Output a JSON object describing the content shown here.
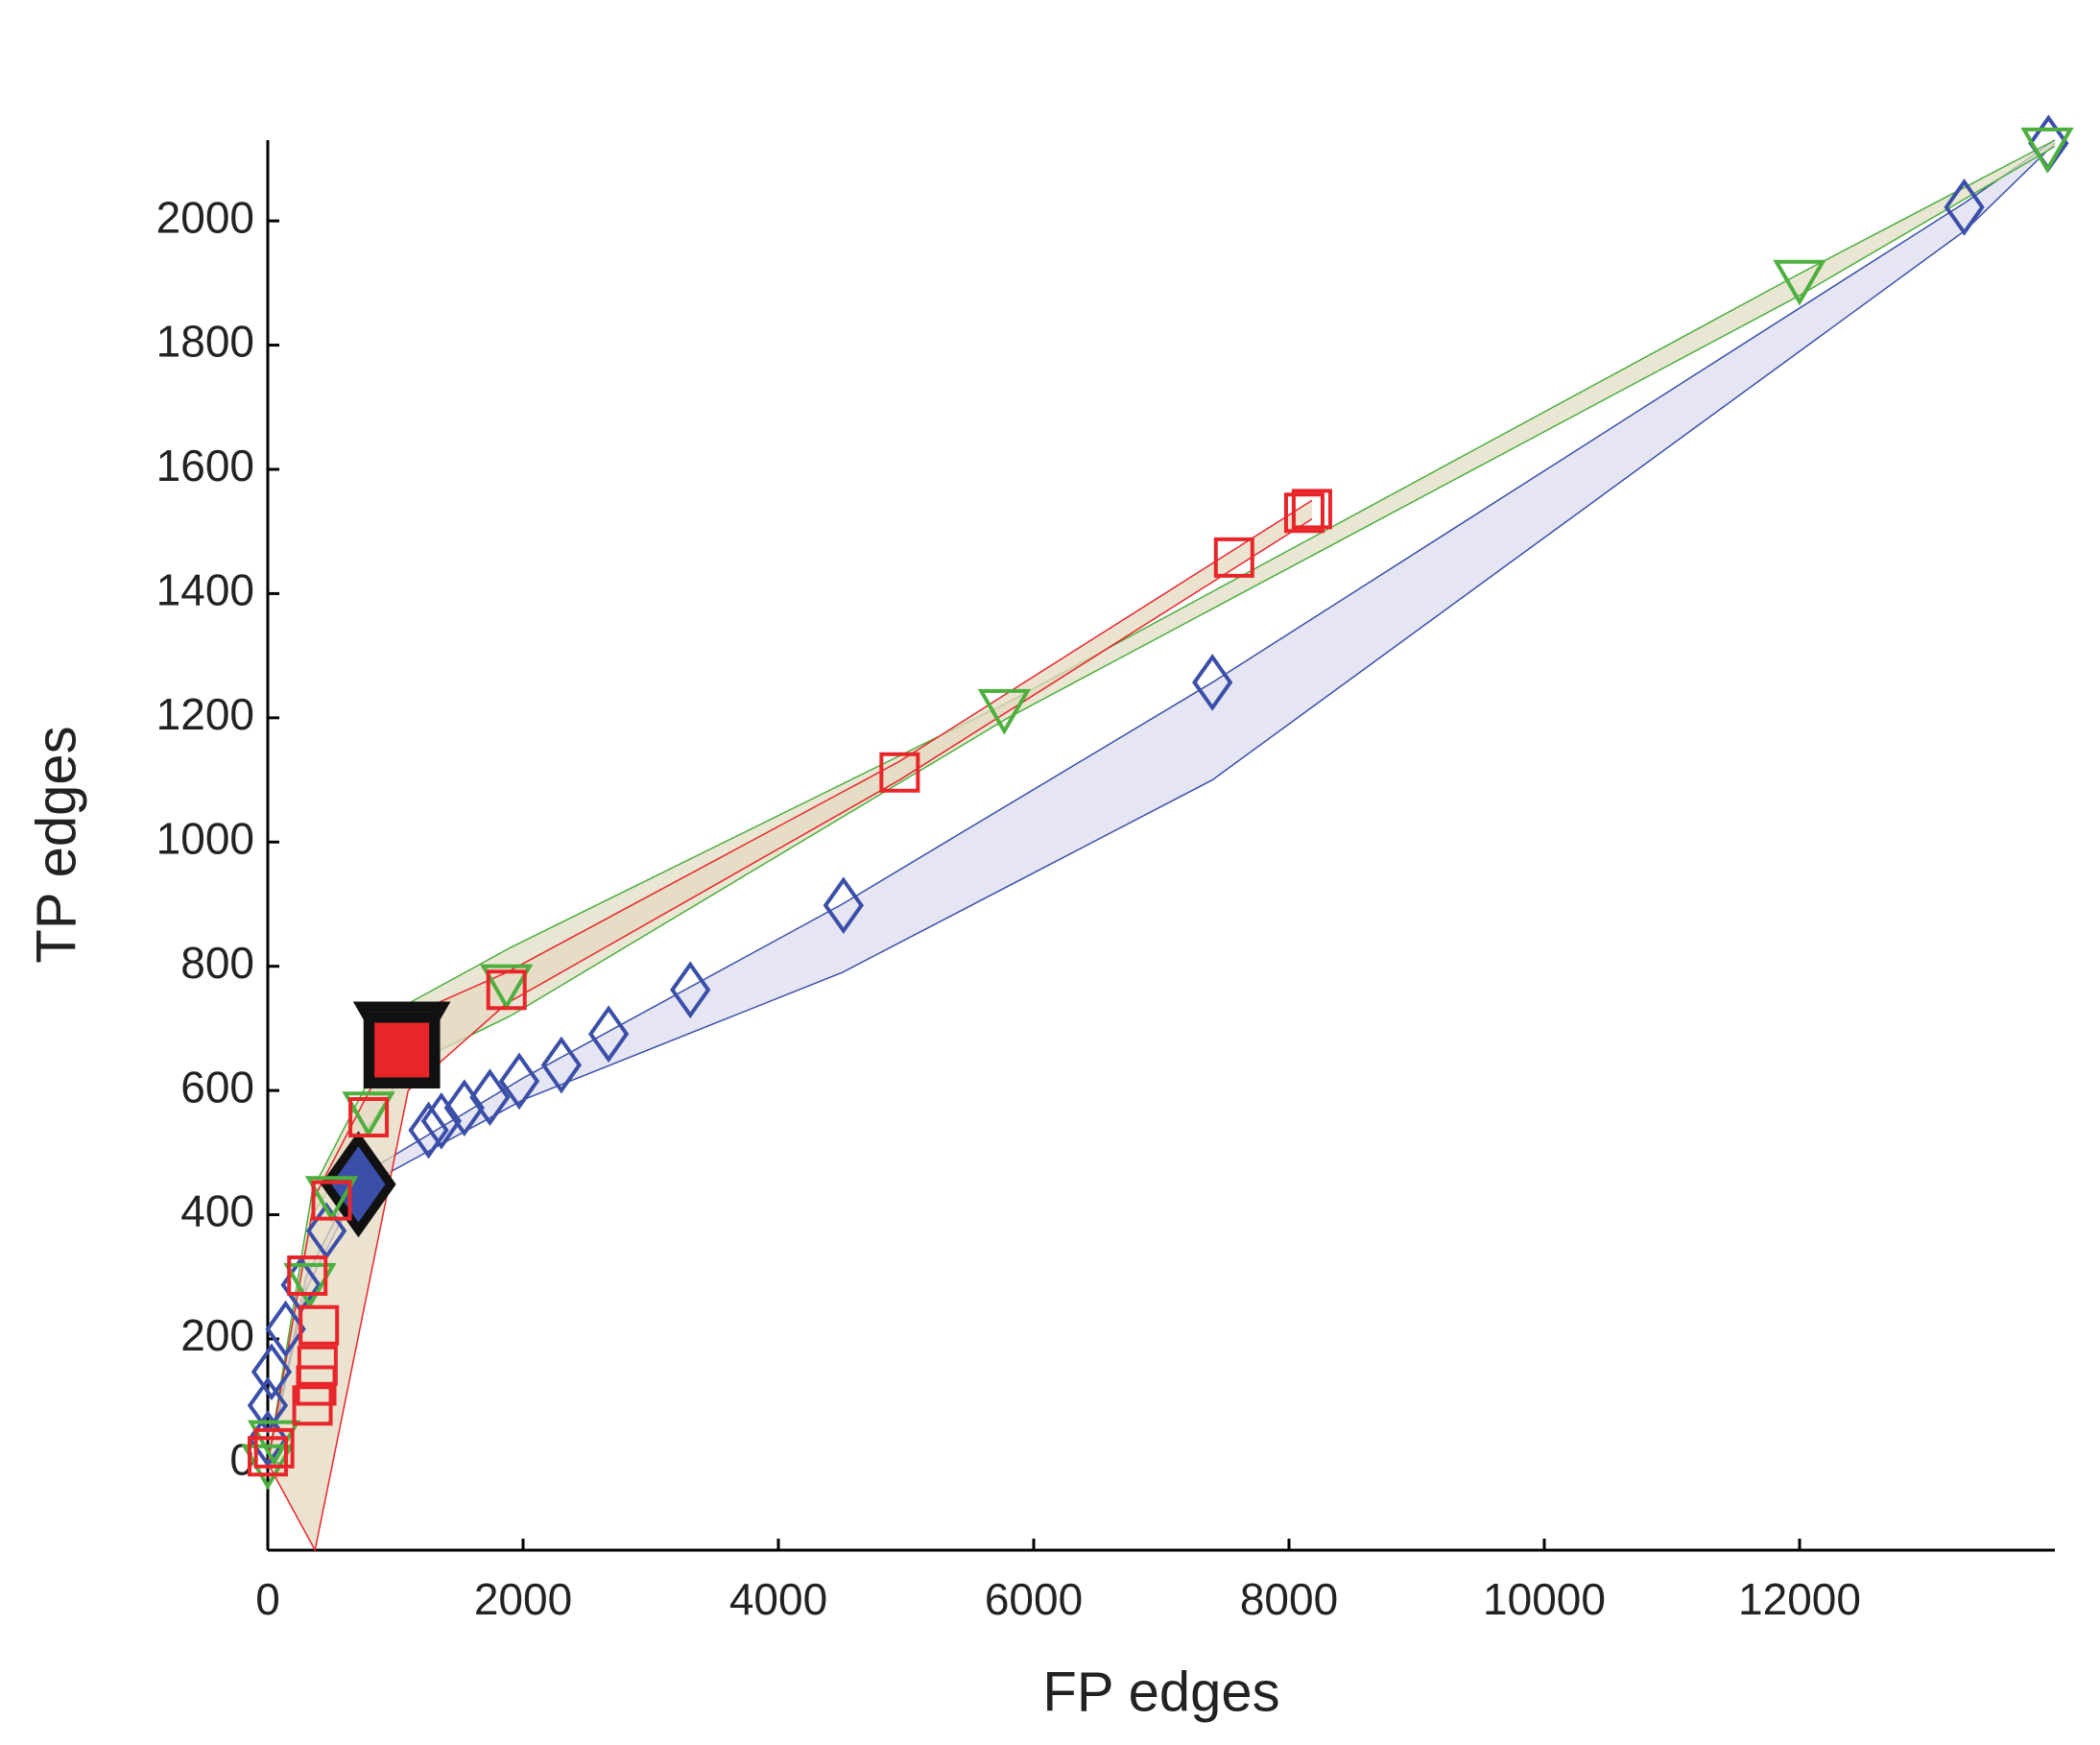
{
  "chart_data": {
    "type": "scatter",
    "xlabel": "FP edges",
    "ylabel": "TP edges",
    "xlim": [
      0,
      14000
    ],
    "ylim": [
      -140,
      2130
    ],
    "xticks": [
      0,
      2000,
      4000,
      6000,
      8000,
      10000,
      12000
    ],
    "yticks": [
      0,
      200,
      400,
      600,
      800,
      1000,
      1200,
      1400,
      1600,
      1800,
      2000
    ],
    "grid": false,
    "series": [
      {
        "marker": "diamond",
        "color": "#3b4fa8",
        "band_color": "#dcdcf0",
        "highlight": 12,
        "x": [
          13950,
          13290,
          7400,
          4510,
          3310,
          2670,
          2300,
          1970,
          1740,
          1540,
          1360,
          1260,
          710,
          460,
          260,
          140,
          30,
          0,
          0
        ],
        "values": [
          2125,
          2022,
          1257,
          898,
          762,
          691,
          641,
          615,
          589,
          572,
          551,
          536,
          449,
          374,
          287,
          216,
          147,
          93,
          39
        ],
        "band_x": [
          0,
          300,
          700,
          2000,
          4500,
          7400,
          13300,
          14000
        ],
        "band_upper": [
          0,
          300,
          460,
          620,
          900,
          1257,
          2030,
          2130
        ],
        "band_lower": [
          0,
          280,
          440,
          585,
          790,
          1100,
          1985,
          2125
        ]
      },
      {
        "marker": "triangle",
        "color": "#4caf3e",
        "band_color": "#e2dec4",
        "highlight": 4,
        "x": [
          13940,
          12000,
          5770,
          1870,
          1050,
          790,
          500,
          330,
          50,
          0
        ],
        "values": [
          2120,
          1907,
          1216,
          773,
          686,
          568,
          432,
          292,
          39,
          0
        ],
        "band_x": [
          0,
          350,
          1100,
          1900,
          5800,
          12000,
          14000
        ],
        "band_upper": [
          0,
          440,
          740,
          830,
          1225,
          1915,
          2130
        ],
        "band_lower": [
          0,
          400,
          640,
          720,
          1200,
          1880,
          2120
        ]
      },
      {
        "marker": "square",
        "color": "#e8262a",
        "band_color": "#e6d8c0",
        "highlight": 5,
        "x": [
          8180,
          8120,
          7570,
          4950,
          1870,
          1050,
          790,
          500,
          310,
          400,
          390,
          380,
          350,
          50,
          0
        ],
        "values": [
          1536,
          1530,
          1458,
          1112,
          762,
          665,
          557,
          423,
          302,
          222,
          157,
          125,
          93,
          24,
          11
        ],
        "band_x": [
          0,
          370,
          1100,
          1870,
          4950,
          8180
        ],
        "band_upper": [
          0,
          430,
          720,
          790,
          1130,
          1550
        ],
        "band_lower": [
          0,
          -140,
          600,
          740,
          1100,
          1520
        ]
      }
    ]
  }
}
